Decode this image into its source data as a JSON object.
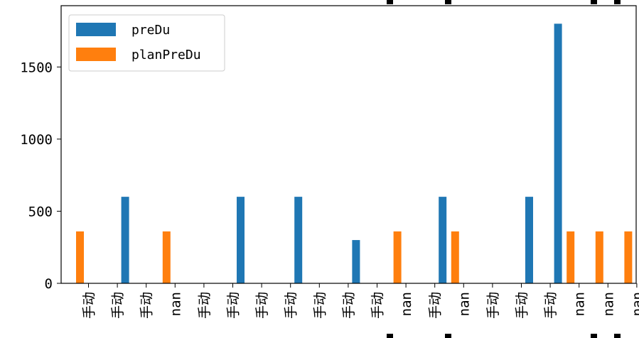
{
  "chart_data": {
    "type": "bar",
    "categories": [
      "手动",
      "手动",
      "手动",
      "nan",
      "手动",
      "手动",
      "手动",
      "手动",
      "手动",
      "手动",
      "手动",
      "nan",
      "手动",
      "nan",
      "手动",
      "手动",
      "手动",
      "nan",
      "nan",
      "nan"
    ],
    "series": [
      {
        "name": "preDu",
        "color": "#1f77b4",
        "values": [
          0,
          600,
          0,
          0,
          0,
          600,
          0,
          600,
          0,
          300,
          0,
          0,
          600,
          0,
          0,
          600,
          1800,
          0,
          0,
          0
        ]
      },
      {
        "name": "planPreDu",
        "color": "#ff7f0e",
        "values": [
          360,
          0,
          0,
          360,
          0,
          0,
          0,
          0,
          0,
          0,
          0,
          360,
          0,
          360,
          0,
          0,
          0,
          360,
          360,
          360
        ]
      }
    ],
    "ylim": [
      0,
      1925
    ],
    "yticks": [
      0,
      500,
      1000,
      1500
    ],
    "legend": "top-left",
    "grid": false
  }
}
